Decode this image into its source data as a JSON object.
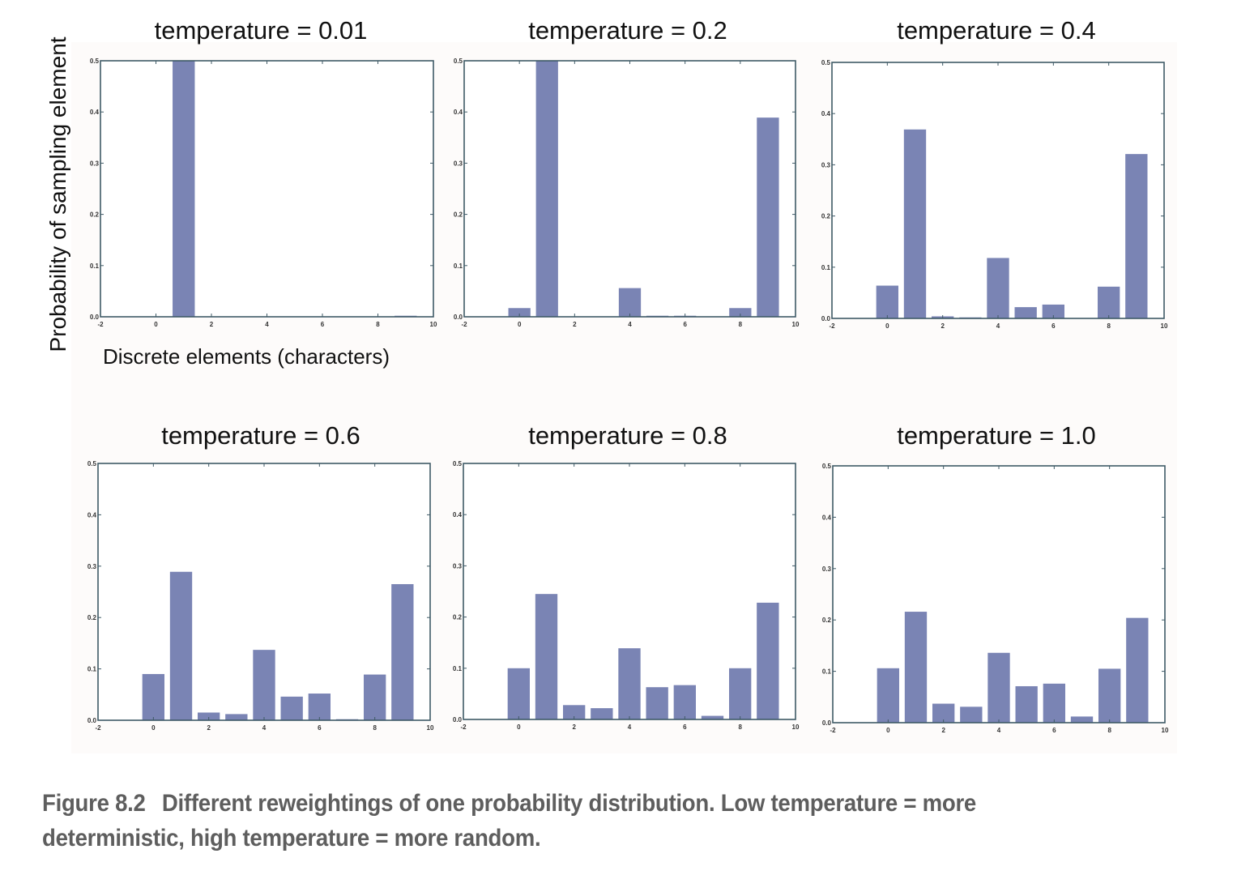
{
  "caption": {
    "figure_number": "Figure 8.2",
    "text": "Different reweightings of one probability distribution. Low temperature = more deterministic, high temperature = more random."
  },
  "colors": {
    "bar": "#7a84b4",
    "axis": "#3f5a66"
  },
  "chart_data": [
    {
      "type": "bar",
      "title": "temperature = 0.01",
      "xlabel": "Discrete elements (characters)",
      "ylabel": "Probability of sampling element",
      "x": [
        0,
        1,
        2,
        3,
        4,
        5,
        6,
        7,
        8,
        9
      ],
      "values": [
        0,
        0.5,
        0,
        0,
        0,
        0,
        0,
        0,
        0,
        0.002
      ],
      "xlim": [
        -2,
        10
      ],
      "ylim": [
        0,
        0.5
      ],
      "xticks": [
        "-2",
        "0",
        "2",
        "4",
        "6",
        "8",
        "10"
      ],
      "yticks": [
        "0.0",
        "0.1",
        "0.2",
        "0.3",
        "0.4",
        "0.5"
      ],
      "grid": false
    },
    {
      "type": "bar",
      "title": "temperature = 0.2",
      "x": [
        0,
        1,
        2,
        3,
        4,
        5,
        6,
        7,
        8,
        9
      ],
      "values": [
        0.017,
        0.5,
        0,
        0,
        0.056,
        0.002,
        0.002,
        0,
        0.017,
        0.389
      ],
      "xlim": [
        -2,
        10
      ],
      "ylim": [
        0,
        0.5
      ],
      "xticks": [
        "-2",
        "0",
        "2",
        "4",
        "6",
        "8",
        "10"
      ],
      "yticks": [
        "0.0",
        "0.1",
        "0.2",
        "0.3",
        "0.4",
        "0.5"
      ],
      "grid": false
    },
    {
      "type": "bar",
      "title": "temperature = 0.4",
      "x": [
        0,
        1,
        2,
        3,
        4,
        5,
        6,
        7,
        8,
        9
      ],
      "values": [
        0.064,
        0.369,
        0.004,
        0.002,
        0.118,
        0.022,
        0.027,
        0,
        0.062,
        0.321
      ],
      "xlim": [
        -2,
        10
      ],
      "ylim": [
        0,
        0.5
      ],
      "xticks": [
        "-2",
        "0",
        "2",
        "4",
        "6",
        "8",
        "10"
      ],
      "yticks": [
        "0.0",
        "0.1",
        "0.2",
        "0.3",
        "0.4",
        "0.5"
      ],
      "grid": false
    },
    {
      "type": "bar",
      "title": "temperature = 0.6",
      "x": [
        0,
        1,
        2,
        3,
        4,
        5,
        6,
        7,
        8,
        9
      ],
      "values": [
        0.09,
        0.289,
        0.015,
        0.012,
        0.137,
        0.046,
        0.052,
        0.002,
        0.089,
        0.265
      ],
      "xlim": [
        -2,
        10
      ],
      "ylim": [
        0,
        0.5
      ],
      "xticks": [
        "-2",
        "0",
        "2",
        "4",
        "6",
        "8",
        "10"
      ],
      "yticks": [
        "0.0",
        "0.1",
        "0.2",
        "0.3",
        "0.4",
        "0.5"
      ],
      "grid": false
    },
    {
      "type": "bar",
      "title": "temperature = 0.8",
      "x": [
        0,
        1,
        2,
        3,
        4,
        5,
        6,
        7,
        8,
        9
      ],
      "values": [
        0.1,
        0.245,
        0.028,
        0.022,
        0.139,
        0.063,
        0.067,
        0.007,
        0.1,
        0.228
      ],
      "xlim": [
        -2,
        10
      ],
      "ylim": [
        0,
        0.5
      ],
      "xticks": [
        "-2",
        "0",
        "2",
        "4",
        "6",
        "8",
        "10"
      ],
      "yticks": [
        "0.0",
        "0.1",
        "0.2",
        "0.3",
        "0.4",
        "0.5"
      ],
      "grid": false
    },
    {
      "type": "bar",
      "title": "temperature = 1.0",
      "x": [
        0,
        1,
        2,
        3,
        4,
        5,
        6,
        7,
        8,
        9
      ],
      "values": [
        0.106,
        0.216,
        0.037,
        0.031,
        0.136,
        0.071,
        0.076,
        0.012,
        0.105,
        0.204
      ],
      "xlim": [
        -2,
        10
      ],
      "ylim": [
        0,
        0.5
      ],
      "xticks": [
        "-2",
        "0",
        "2",
        "4",
        "6",
        "8",
        "10"
      ],
      "yticks": [
        "0.0",
        "0.1",
        "0.2",
        "0.3",
        "0.4",
        "0.5"
      ],
      "grid": false
    }
  ]
}
